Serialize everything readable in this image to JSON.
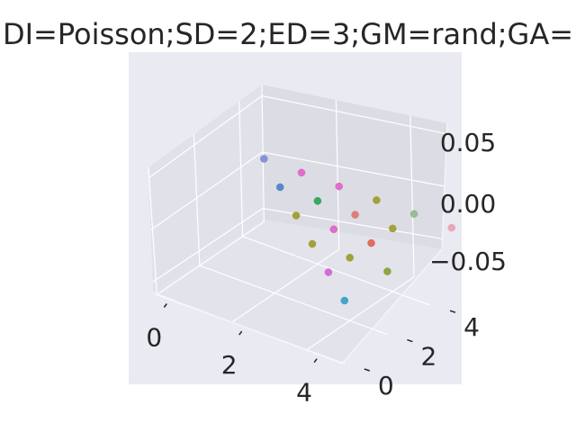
{
  "chart_data": {
    "type": "scatter",
    "projection": "3d",
    "title": "DI=Poisson;SD=2;ED=3;GM=rand;GA=",
    "xlabel": "",
    "ylabel": "",
    "zlabel": "",
    "xlim": [
      0,
      5
    ],
    "ylim": [
      0,
      5
    ],
    "zlim": [
      -0.06,
      0.06
    ],
    "x_ticks": [
      "0",
      "2",
      "4"
    ],
    "y_ticks": [
      "0",
      "2",
      "4"
    ],
    "z_ticks": [
      "0.05",
      "0.00",
      "−0.05"
    ],
    "grid": true,
    "legend": "none",
    "background": "#eaeaf2",
    "points": [
      {
        "x": 5,
        "y": 5,
        "z": 0,
        "color": "#e8a0b4"
      },
      {
        "x": 4,
        "y": 5,
        "z": 0,
        "color": "#8fb88a"
      },
      {
        "x": 3,
        "y": 5,
        "z": 0,
        "color": "#9a9a2a"
      },
      {
        "x": 4,
        "y": 4,
        "z": 0,
        "color": "#9a9a2a"
      },
      {
        "x": 2,
        "y": 5,
        "z": 0,
        "color": "#e060c8"
      },
      {
        "x": 3,
        "y": 4,
        "z": 0,
        "color": "#e07070"
      },
      {
        "x": 1,
        "y": 5,
        "z": 0,
        "color": "#e060c8"
      },
      {
        "x": 2,
        "y": 4,
        "z": 0,
        "color": "#2aa050"
      },
      {
        "x": 4,
        "y": 3,
        "z": 0,
        "color": "#e06050"
      },
      {
        "x": 0,
        "y": 5,
        "z": 0,
        "color": "#7a8ad0"
      },
      {
        "x": 1,
        "y": 4,
        "z": 0,
        "color": "#4a80c8"
      },
      {
        "x": 3,
        "y": 3,
        "z": 0,
        "color": "#e060c8"
      },
      {
        "x": 5,
        "y": 2,
        "z": 0,
        "color": "#80a030"
      },
      {
        "x": 2,
        "y": 3,
        "z": 0,
        "color": "#9a9a2a"
      },
      {
        "x": 4,
        "y": 2,
        "z": 0,
        "color": "#9a9a2a"
      },
      {
        "x": 3,
        "y": 2,
        "z": 0,
        "color": "#9a9a2a"
      },
      {
        "x": 4,
        "y": 1,
        "z": 0,
        "color": "#d060d0"
      },
      {
        "x": 5,
        "y": 0,
        "z": 0,
        "color": "#30a0c8"
      }
    ]
  }
}
